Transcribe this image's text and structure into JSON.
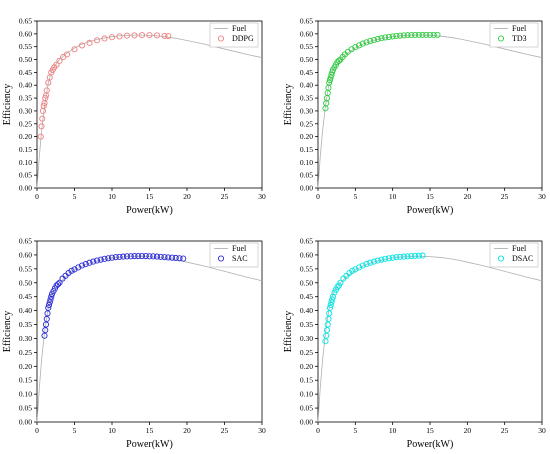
{
  "chart_data": [
    {
      "type": "scatter",
      "xlabel": "Power(kW)",
      "ylabel": "Efficiency",
      "xlim": [
        0,
        30
      ],
      "ylim": [
        0,
        0.65
      ],
      "xticks": [
        "0",
        "5",
        "10",
        "15",
        "20",
        "25",
        "30"
      ],
      "yticks": [
        "0.00",
        "0.05",
        "0.10",
        "0.15",
        "0.20",
        "0.25",
        "0.30",
        "0.35",
        "0.40",
        "0.45",
        "0.50",
        "0.55",
        "0.60",
        "0.65"
      ],
      "legend": {
        "position": "top-right",
        "entries": [
          "Fuel",
          "DDPG"
        ]
      },
      "series": [
        {
          "name": "Fuel",
          "kind": "line",
          "color": "#b0b0b0",
          "x": [
            0,
            0.3,
            0.6,
            1,
            1.5,
            2,
            2.5,
            3,
            4,
            5,
            6,
            7,
            8,
            9,
            10,
            11,
            12,
            13,
            14,
            15,
            16,
            17,
            18,
            19,
            20,
            22,
            24,
            26,
            28,
            30
          ],
          "y": [
            0,
            0.12,
            0.22,
            0.32,
            0.41,
            0.46,
            0.48,
            0.5,
            0.525,
            0.545,
            0.56,
            0.57,
            0.578,
            0.584,
            0.589,
            0.592,
            0.594,
            0.595,
            0.595,
            0.594,
            0.592,
            0.589,
            0.585,
            0.58,
            0.574,
            0.562,
            0.548,
            0.534,
            0.52,
            0.507
          ]
        },
        {
          "name": "DDPG",
          "kind": "markers",
          "color": "#f08080",
          "x": [
            0.5,
            0.6,
            0.7,
            0.8,
            0.9,
            1.0,
            1.1,
            1.2,
            1.3,
            1.5,
            1.7,
            1.9,
            2.1,
            2.3,
            2.6,
            3,
            3.5,
            4,
            5,
            6,
            7,
            8,
            9,
            10,
            11,
            12,
            13,
            14,
            15,
            16,
            17,
            17.5
          ],
          "y": [
            0.2,
            0.24,
            0.27,
            0.3,
            0.32,
            0.33,
            0.35,
            0.36,
            0.38,
            0.41,
            0.43,
            0.45,
            0.46,
            0.47,
            0.48,
            0.495,
            0.51,
            0.52,
            0.54,
            0.555,
            0.565,
            0.575,
            0.582,
            0.587,
            0.59,
            0.593,
            0.594,
            0.595,
            0.595,
            0.594,
            0.592,
            0.591
          ]
        }
      ]
    },
    {
      "type": "scatter",
      "xlabel": "Power(kW)",
      "ylabel": "Efficiency",
      "xlim": [
        0,
        30
      ],
      "ylim": [
        0,
        0.65
      ],
      "xticks": [
        "0",
        "5",
        "10",
        "15",
        "20",
        "25",
        "30"
      ],
      "yticks": [
        "0.00",
        "0.05",
        "0.10",
        "0.15",
        "0.20",
        "0.25",
        "0.30",
        "0.35",
        "0.40",
        "0.45",
        "0.50",
        "0.55",
        "0.60",
        "0.65"
      ],
      "legend": {
        "position": "top-right",
        "entries": [
          "Fuel",
          "TD3"
        ]
      },
      "series": [
        {
          "name": "Fuel",
          "kind": "line",
          "color": "#b0b0b0",
          "x": [
            0,
            0.3,
            0.6,
            1,
            1.5,
            2,
            2.5,
            3,
            4,
            5,
            6,
            7,
            8,
            9,
            10,
            11,
            12,
            13,
            14,
            15,
            16,
            17,
            18,
            19,
            20,
            22,
            24,
            26,
            28,
            30
          ],
          "y": [
            0,
            0.12,
            0.22,
            0.32,
            0.41,
            0.46,
            0.48,
            0.5,
            0.525,
            0.545,
            0.56,
            0.57,
            0.578,
            0.584,
            0.589,
            0.592,
            0.594,
            0.595,
            0.595,
            0.594,
            0.592,
            0.589,
            0.585,
            0.58,
            0.574,
            0.562,
            0.548,
            0.534,
            0.52,
            0.507
          ]
        },
        {
          "name": "TD3",
          "kind": "markers",
          "color": "#2ecc40",
          "x": [
            1.0,
            1.1,
            1.2,
            1.3,
            1.4,
            1.5,
            1.6,
            1.7,
            1.8,
            1.9,
            2.0,
            2.2,
            2.4,
            2.6,
            2.8,
            3,
            3.3,
            3.6,
            4,
            4.5,
            5,
            5.5,
            6,
            6.5,
            7,
            7.5,
            8,
            8.5,
            9,
            9.5,
            10,
            10.5,
            11,
            11.5,
            12,
            12.5,
            13,
            13.5,
            14,
            14.5,
            15,
            15.5,
            16
          ],
          "y": [
            0.31,
            0.33,
            0.35,
            0.37,
            0.39,
            0.41,
            0.42,
            0.43,
            0.44,
            0.45,
            0.46,
            0.47,
            0.48,
            0.49,
            0.495,
            0.5,
            0.51,
            0.52,
            0.53,
            0.54,
            0.548,
            0.555,
            0.562,
            0.567,
            0.572,
            0.576,
            0.58,
            0.583,
            0.586,
            0.588,
            0.59,
            0.592,
            0.593,
            0.594,
            0.595,
            0.595,
            0.596,
            0.596,
            0.596,
            0.596,
            0.596,
            0.596,
            0.596
          ]
        }
      ]
    },
    {
      "type": "scatter",
      "xlabel": "Power(kW)",
      "ylabel": "Efficiency",
      "xlim": [
        0,
        30
      ],
      "ylim": [
        0,
        0.65
      ],
      "xticks": [
        "0",
        "5",
        "10",
        "15",
        "20",
        "25",
        "30"
      ],
      "yticks": [
        "0.00",
        "0.05",
        "0.10",
        "0.15",
        "0.20",
        "0.25",
        "0.30",
        "0.35",
        "0.40",
        "0.45",
        "0.50",
        "0.55",
        "0.60",
        "0.65"
      ],
      "legend": {
        "position": "top-right",
        "entries": [
          "Fuel",
          "SAC"
        ]
      },
      "series": [
        {
          "name": "Fuel",
          "kind": "line",
          "color": "#b0b0b0",
          "x": [
            0,
            0.3,
            0.6,
            1,
            1.5,
            2,
            2.5,
            3,
            4,
            5,
            6,
            7,
            8,
            9,
            10,
            11,
            12,
            13,
            14,
            15,
            16,
            17,
            18,
            19,
            20,
            22,
            24,
            26,
            28,
            30
          ],
          "y": [
            0,
            0.12,
            0.22,
            0.32,
            0.41,
            0.46,
            0.48,
            0.5,
            0.525,
            0.545,
            0.56,
            0.57,
            0.578,
            0.584,
            0.589,
            0.592,
            0.594,
            0.595,
            0.595,
            0.594,
            0.592,
            0.589,
            0.585,
            0.58,
            0.574,
            0.562,
            0.548,
            0.534,
            0.52,
            0.507
          ]
        },
        {
          "name": "SAC",
          "kind": "markers",
          "color": "#2a2ad8",
          "x": [
            1.0,
            1.1,
            1.2,
            1.3,
            1.4,
            1.5,
            1.6,
            1.7,
            1.8,
            1.9,
            2.0,
            2.2,
            2.4,
            2.6,
            2.8,
            3,
            3.4,
            3.8,
            4.2,
            4.6,
            5,
            5.5,
            6,
            6.5,
            7,
            7.5,
            8,
            8.5,
            9,
            9.5,
            10,
            10.5,
            11,
            11.5,
            12,
            12.5,
            13,
            13.5,
            14,
            14.5,
            15,
            15.5,
            16,
            16.5,
            17,
            17.5,
            18,
            18.5,
            19,
            19.5
          ],
          "y": [
            0.31,
            0.33,
            0.35,
            0.37,
            0.39,
            0.41,
            0.42,
            0.43,
            0.44,
            0.45,
            0.46,
            0.47,
            0.48,
            0.49,
            0.495,
            0.5,
            0.515,
            0.525,
            0.535,
            0.543,
            0.548,
            0.555,
            0.562,
            0.567,
            0.572,
            0.576,
            0.58,
            0.583,
            0.586,
            0.588,
            0.59,
            0.592,
            0.593,
            0.594,
            0.595,
            0.595,
            0.596,
            0.596,
            0.596,
            0.596,
            0.595,
            0.595,
            0.594,
            0.593,
            0.592,
            0.591,
            0.59,
            0.589,
            0.588,
            0.587
          ]
        }
      ]
    },
    {
      "type": "scatter",
      "xlabel": "Power(kW)",
      "ylabel": "Efficiency",
      "xlim": [
        0,
        30
      ],
      "ylim": [
        0,
        0.65
      ],
      "xticks": [
        "0",
        "5",
        "10",
        "15",
        "20",
        "25",
        "30"
      ],
      "yticks": [
        "0.00",
        "0.05",
        "0.10",
        "0.15",
        "0.20",
        "0.25",
        "0.30",
        "0.35",
        "0.40",
        "0.45",
        "0.50",
        "0.55",
        "0.60",
        "0.65"
      ],
      "legend": {
        "position": "top-right",
        "entries": [
          "Fuel",
          "DSAC"
        ]
      },
      "series": [
        {
          "name": "Fuel",
          "kind": "line",
          "color": "#b0b0b0",
          "x": [
            0,
            0.3,
            0.6,
            1,
            1.5,
            2,
            2.5,
            3,
            4,
            5,
            6,
            7,
            8,
            9,
            10,
            11,
            12,
            13,
            14,
            15,
            16,
            17,
            18,
            19,
            20,
            22,
            24,
            26,
            28,
            30
          ],
          "y": [
            0,
            0.12,
            0.22,
            0.32,
            0.41,
            0.46,
            0.48,
            0.5,
            0.525,
            0.545,
            0.56,
            0.57,
            0.578,
            0.584,
            0.589,
            0.592,
            0.594,
            0.595,
            0.595,
            0.594,
            0.592,
            0.589,
            0.585,
            0.58,
            0.574,
            0.562,
            0.548,
            0.534,
            0.52,
            0.507
          ]
        },
        {
          "name": "DSAC",
          "kind": "markers",
          "color": "#00e5e5",
          "x": [
            1.0,
            1.1,
            1.2,
            1.3,
            1.4,
            1.5,
            1.6,
            1.7,
            1.8,
            1.9,
            2.0,
            2.2,
            2.4,
            2.6,
            2.8,
            3,
            3.4,
            3.8,
            4.2,
            4.6,
            5,
            5.5,
            6,
            6.5,
            7,
            7.5,
            8,
            8.5,
            9,
            9.5,
            10,
            10.5,
            11,
            11.5,
            12,
            12.5,
            13,
            13.5,
            14
          ],
          "y": [
            0.29,
            0.31,
            0.33,
            0.35,
            0.37,
            0.39,
            0.41,
            0.42,
            0.43,
            0.44,
            0.45,
            0.465,
            0.475,
            0.485,
            0.49,
            0.5,
            0.515,
            0.525,
            0.535,
            0.543,
            0.548,
            0.555,
            0.562,
            0.567,
            0.572,
            0.576,
            0.58,
            0.583,
            0.586,
            0.588,
            0.59,
            0.592,
            0.593,
            0.594,
            0.595,
            0.596,
            0.597,
            0.597,
            0.598
          ]
        }
      ]
    }
  ]
}
